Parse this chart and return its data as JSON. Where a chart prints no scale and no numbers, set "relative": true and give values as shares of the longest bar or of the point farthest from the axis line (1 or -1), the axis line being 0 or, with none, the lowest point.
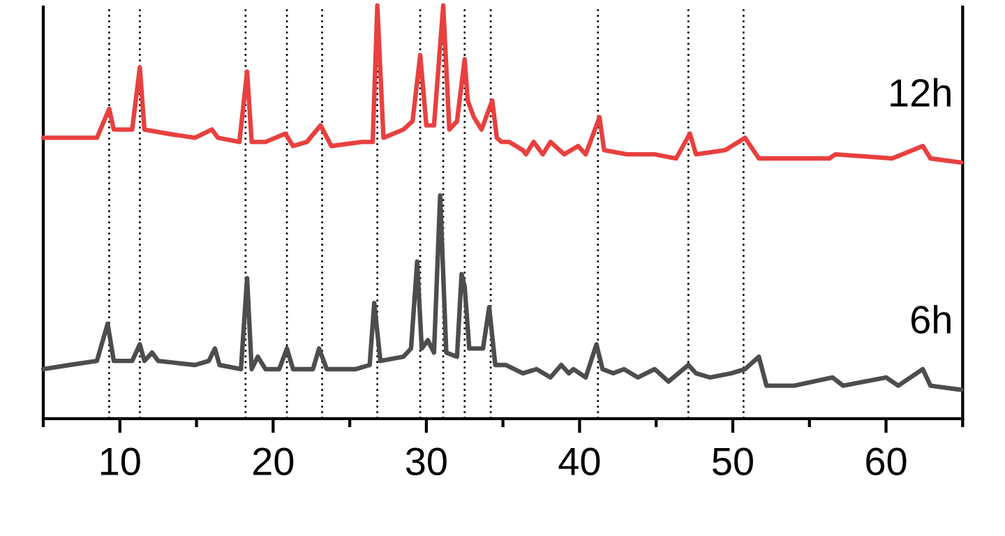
{
  "chart_data": {
    "type": "line",
    "relative": true,
    "xlim": [
      5,
      65
    ],
    "xticks": [
      {
        "value": 5,
        "label": null
      },
      10,
      {
        "value": 15,
        "label": null
      },
      20,
      {
        "value": 25,
        "label": null
      },
      30,
      {
        "value": 35,
        "label": null
      },
      40,
      {
        "value": 45,
        "label": null
      },
      50,
      {
        "value": 55,
        "label": null
      },
      60,
      {
        "value": 65,
        "label": null
      }
    ],
    "tick_labels": "x",
    "ref_lines": [
      {
        "axis": "x",
        "value": 9.3,
        "color": "#000000",
        "line_style": "dotted"
      },
      {
        "axis": "x",
        "value": 11.3,
        "color": "#000000",
        "line_style": "dotted"
      },
      {
        "axis": "x",
        "value": 18.2,
        "color": "#000000",
        "line_style": "dotted"
      },
      {
        "axis": "x",
        "value": 20.9,
        "color": "#000000",
        "line_style": "dotted"
      },
      {
        "axis": "x",
        "value": 23.2,
        "color": "#000000",
        "line_style": "dotted"
      },
      {
        "axis": "x",
        "value": 26.8,
        "color": "#000000",
        "line_style": "dotted"
      },
      {
        "axis": "x",
        "value": 29.6,
        "color": "#000000",
        "line_style": "dotted"
      },
      {
        "axis": "x",
        "value": 31.1,
        "color": "#000000",
        "line_style": "dotted"
      },
      {
        "axis": "x",
        "value": 32.5,
        "color": "#000000",
        "line_style": "dotted"
      },
      {
        "axis": "x",
        "value": 34.2,
        "color": "#000000",
        "line_style": "dotted"
      },
      {
        "axis": "x",
        "value": 41.2,
        "color": "#000000",
        "line_style": "dotted"
      },
      {
        "axis": "x",
        "value": 47.1,
        "color": "#000000",
        "line_style": "dotted"
      },
      {
        "axis": "x",
        "value": 50.7,
        "color": "#000000",
        "line_style": "dotted"
      }
    ],
    "series": [
      {
        "name": "12h",
        "color": "#e8403f",
        "x": [
          5.0,
          7.6,
          8.5,
          9.3,
          9.6,
          10.8,
          11.3,
          11.6,
          13.1,
          14.9,
          16.0,
          16.4,
          17.8,
          18.3,
          18.6,
          19.5,
          20.8,
          21.3,
          22.2,
          23.1,
          23.8,
          25.8,
          26.5,
          26.8,
          27.2,
          28.5,
          29.1,
          29.6,
          30.0,
          30.5,
          31.1,
          31.5,
          32.0,
          32.5,
          32.7,
          33.1,
          33.6,
          34.3,
          34.6,
          34.9,
          35.4,
          36.3,
          36.5,
          37.0,
          37.6,
          38.1,
          39.0,
          39.9,
          40.4,
          41.3,
          41.6,
          43.1,
          44.9,
          46.3,
          47.2,
          47.6,
          49.5,
          50.8,
          51.7,
          53.1,
          56.3,
          56.7,
          60.4,
          62.4,
          62.9,
          64.9
        ],
        "values": [
          0.68,
          0.68,
          0.68,
          0.75,
          0.7,
          0.7,
          0.85,
          0.7,
          0.69,
          0.68,
          0.7,
          0.68,
          0.67,
          0.84,
          0.67,
          0.67,
          0.69,
          0.66,
          0.67,
          0.71,
          0.66,
          0.67,
          0.67,
          1.0,
          0.68,
          0.7,
          0.72,
          0.88,
          0.71,
          0.71,
          1.0,
          0.7,
          0.72,
          0.87,
          0.77,
          0.73,
          0.7,
          0.77,
          0.68,
          0.67,
          0.67,
          0.65,
          0.64,
          0.67,
          0.64,
          0.67,
          0.64,
          0.66,
          0.64,
          0.73,
          0.65,
          0.64,
          0.64,
          0.63,
          0.69,
          0.64,
          0.65,
          0.68,
          0.63,
          0.63,
          0.63,
          0.64,
          0.63,
          0.66,
          0.63,
          0.62
        ]
      },
      {
        "name": "6h",
        "color": "#4d4d4d",
        "x": [
          5.0,
          6.7,
          8.5,
          9.2,
          9.6,
          10.8,
          11.3,
          11.6,
          12.1,
          12.5,
          14.9,
          15.8,
          16.2,
          16.5,
          17.9,
          18.3,
          18.6,
          19.0,
          19.5,
          20.4,
          20.9,
          21.3,
          22.6,
          23.0,
          23.5,
          25.4,
          26.3,
          26.6,
          27.0,
          28.5,
          29.0,
          29.4,
          29.7,
          30.1,
          30.5,
          30.9,
          31.3,
          32.0,
          32.3,
          32.5,
          32.8,
          33.3,
          33.7,
          34.1,
          34.5,
          35.2,
          36.3,
          37.2,
          38.1,
          38.8,
          39.3,
          39.6,
          40.4,
          41.1,
          41.5,
          42.2,
          42.9,
          43.8,
          44.9,
          45.8,
          47.1,
          47.6,
          48.5,
          49.9,
          50.8,
          51.7,
          52.2,
          54.0,
          56.5,
          57.2,
          60.0,
          60.8,
          62.4,
          62.9,
          64.9
        ],
        "values": [
          0.12,
          0.13,
          0.14,
          0.23,
          0.14,
          0.14,
          0.18,
          0.14,
          0.16,
          0.14,
          0.13,
          0.14,
          0.17,
          0.13,
          0.12,
          0.34,
          0.12,
          0.15,
          0.12,
          0.12,
          0.17,
          0.12,
          0.12,
          0.17,
          0.12,
          0.12,
          0.13,
          0.28,
          0.14,
          0.15,
          0.17,
          0.38,
          0.17,
          0.19,
          0.16,
          0.54,
          0.16,
          0.15,
          0.35,
          0.32,
          0.17,
          0.17,
          0.17,
          0.27,
          0.13,
          0.13,
          0.11,
          0.12,
          0.1,
          0.13,
          0.11,
          0.12,
          0.1,
          0.18,
          0.12,
          0.11,
          0.12,
          0.1,
          0.12,
          0.09,
          0.13,
          0.11,
          0.1,
          0.11,
          0.12,
          0.15,
          0.08,
          0.08,
          0.1,
          0.08,
          0.1,
          0.08,
          0.12,
          0.08,
          0.07
        ]
      }
    ]
  }
}
